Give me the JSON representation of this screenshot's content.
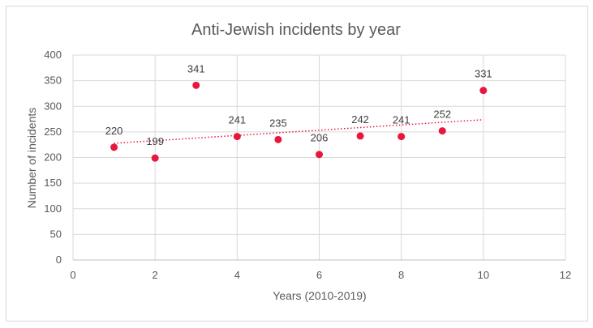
{
  "chart_data": {
    "type": "scatter",
    "title": "Anti-Jewish incidents by year",
    "xlabel": "Years (2010-2019)",
    "ylabel": "Number of incidents",
    "xlim": [
      0,
      12
    ],
    "ylim": [
      0,
      400
    ],
    "x_ticks": [
      "0",
      "2",
      "4",
      "6",
      "8",
      "10",
      "12"
    ],
    "y_ticks": [
      "0",
      "50",
      "100",
      "150",
      "200",
      "250",
      "300",
      "350",
      "400"
    ],
    "grid": true,
    "legend": "none",
    "trendline": "linear",
    "marker_color": "#e8183c",
    "points": [
      {
        "x": 1,
        "y": 220,
        "label": "220"
      },
      {
        "x": 2,
        "y": 199,
        "label": "199"
      },
      {
        "x": 3,
        "y": 341,
        "label": "341"
      },
      {
        "x": 4,
        "y": 241,
        "label": "241"
      },
      {
        "x": 5,
        "y": 235,
        "label": "235"
      },
      {
        "x": 6,
        "y": 206,
        "label": "206"
      },
      {
        "x": 7,
        "y": 242,
        "label": "242"
      },
      {
        "x": 8,
        "y": 241,
        "label": "241"
      },
      {
        "x": 9,
        "y": 252,
        "label": "252"
      },
      {
        "x": 10,
        "y": 331,
        "label": "331"
      }
    ]
  }
}
